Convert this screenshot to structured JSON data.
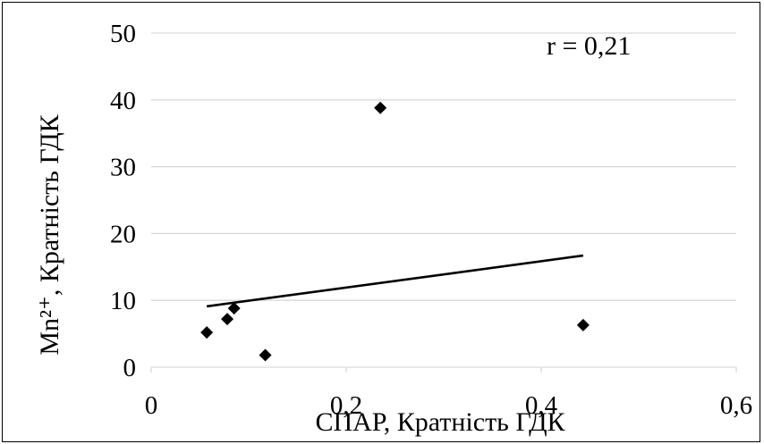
{
  "chart_data": {
    "type": "scatter",
    "xlabel": "СПАР, Кратність ГДК",
    "ylabel": "Mn²⁺, Кратність ГДК",
    "xlim": [
      0,
      0.6
    ],
    "ylim": [
      0,
      50
    ],
    "x_ticks": [
      "0",
      "0,2",
      "0,4",
      "0,6"
    ],
    "y_ticks": [
      "0",
      "10",
      "20",
      "30",
      "40",
      "50"
    ],
    "x_tick_values": [
      0,
      0.2,
      0.4,
      0.6
    ],
    "y_tick_values": [
      0,
      10,
      20,
      30,
      40,
      50
    ],
    "grid": "horizontal",
    "marker": "diamond",
    "marker_color": "#000000",
    "series": [
      {
        "points": [
          {
            "x": 0.057,
            "y": 5.2
          },
          {
            "x": 0.078,
            "y": 7.2
          },
          {
            "x": 0.085,
            "y": 8.8
          },
          {
            "x": 0.117,
            "y": 1.8
          },
          {
            "x": 0.235,
            "y": 38.8
          },
          {
            "x": 0.443,
            "y": 6.3
          }
        ]
      }
    ],
    "trendline": {
      "type": "linear",
      "x": [
        0.057,
        0.443
      ],
      "y": [
        9.1,
        16.7
      ]
    },
    "annotation": "r = 0,21"
  }
}
